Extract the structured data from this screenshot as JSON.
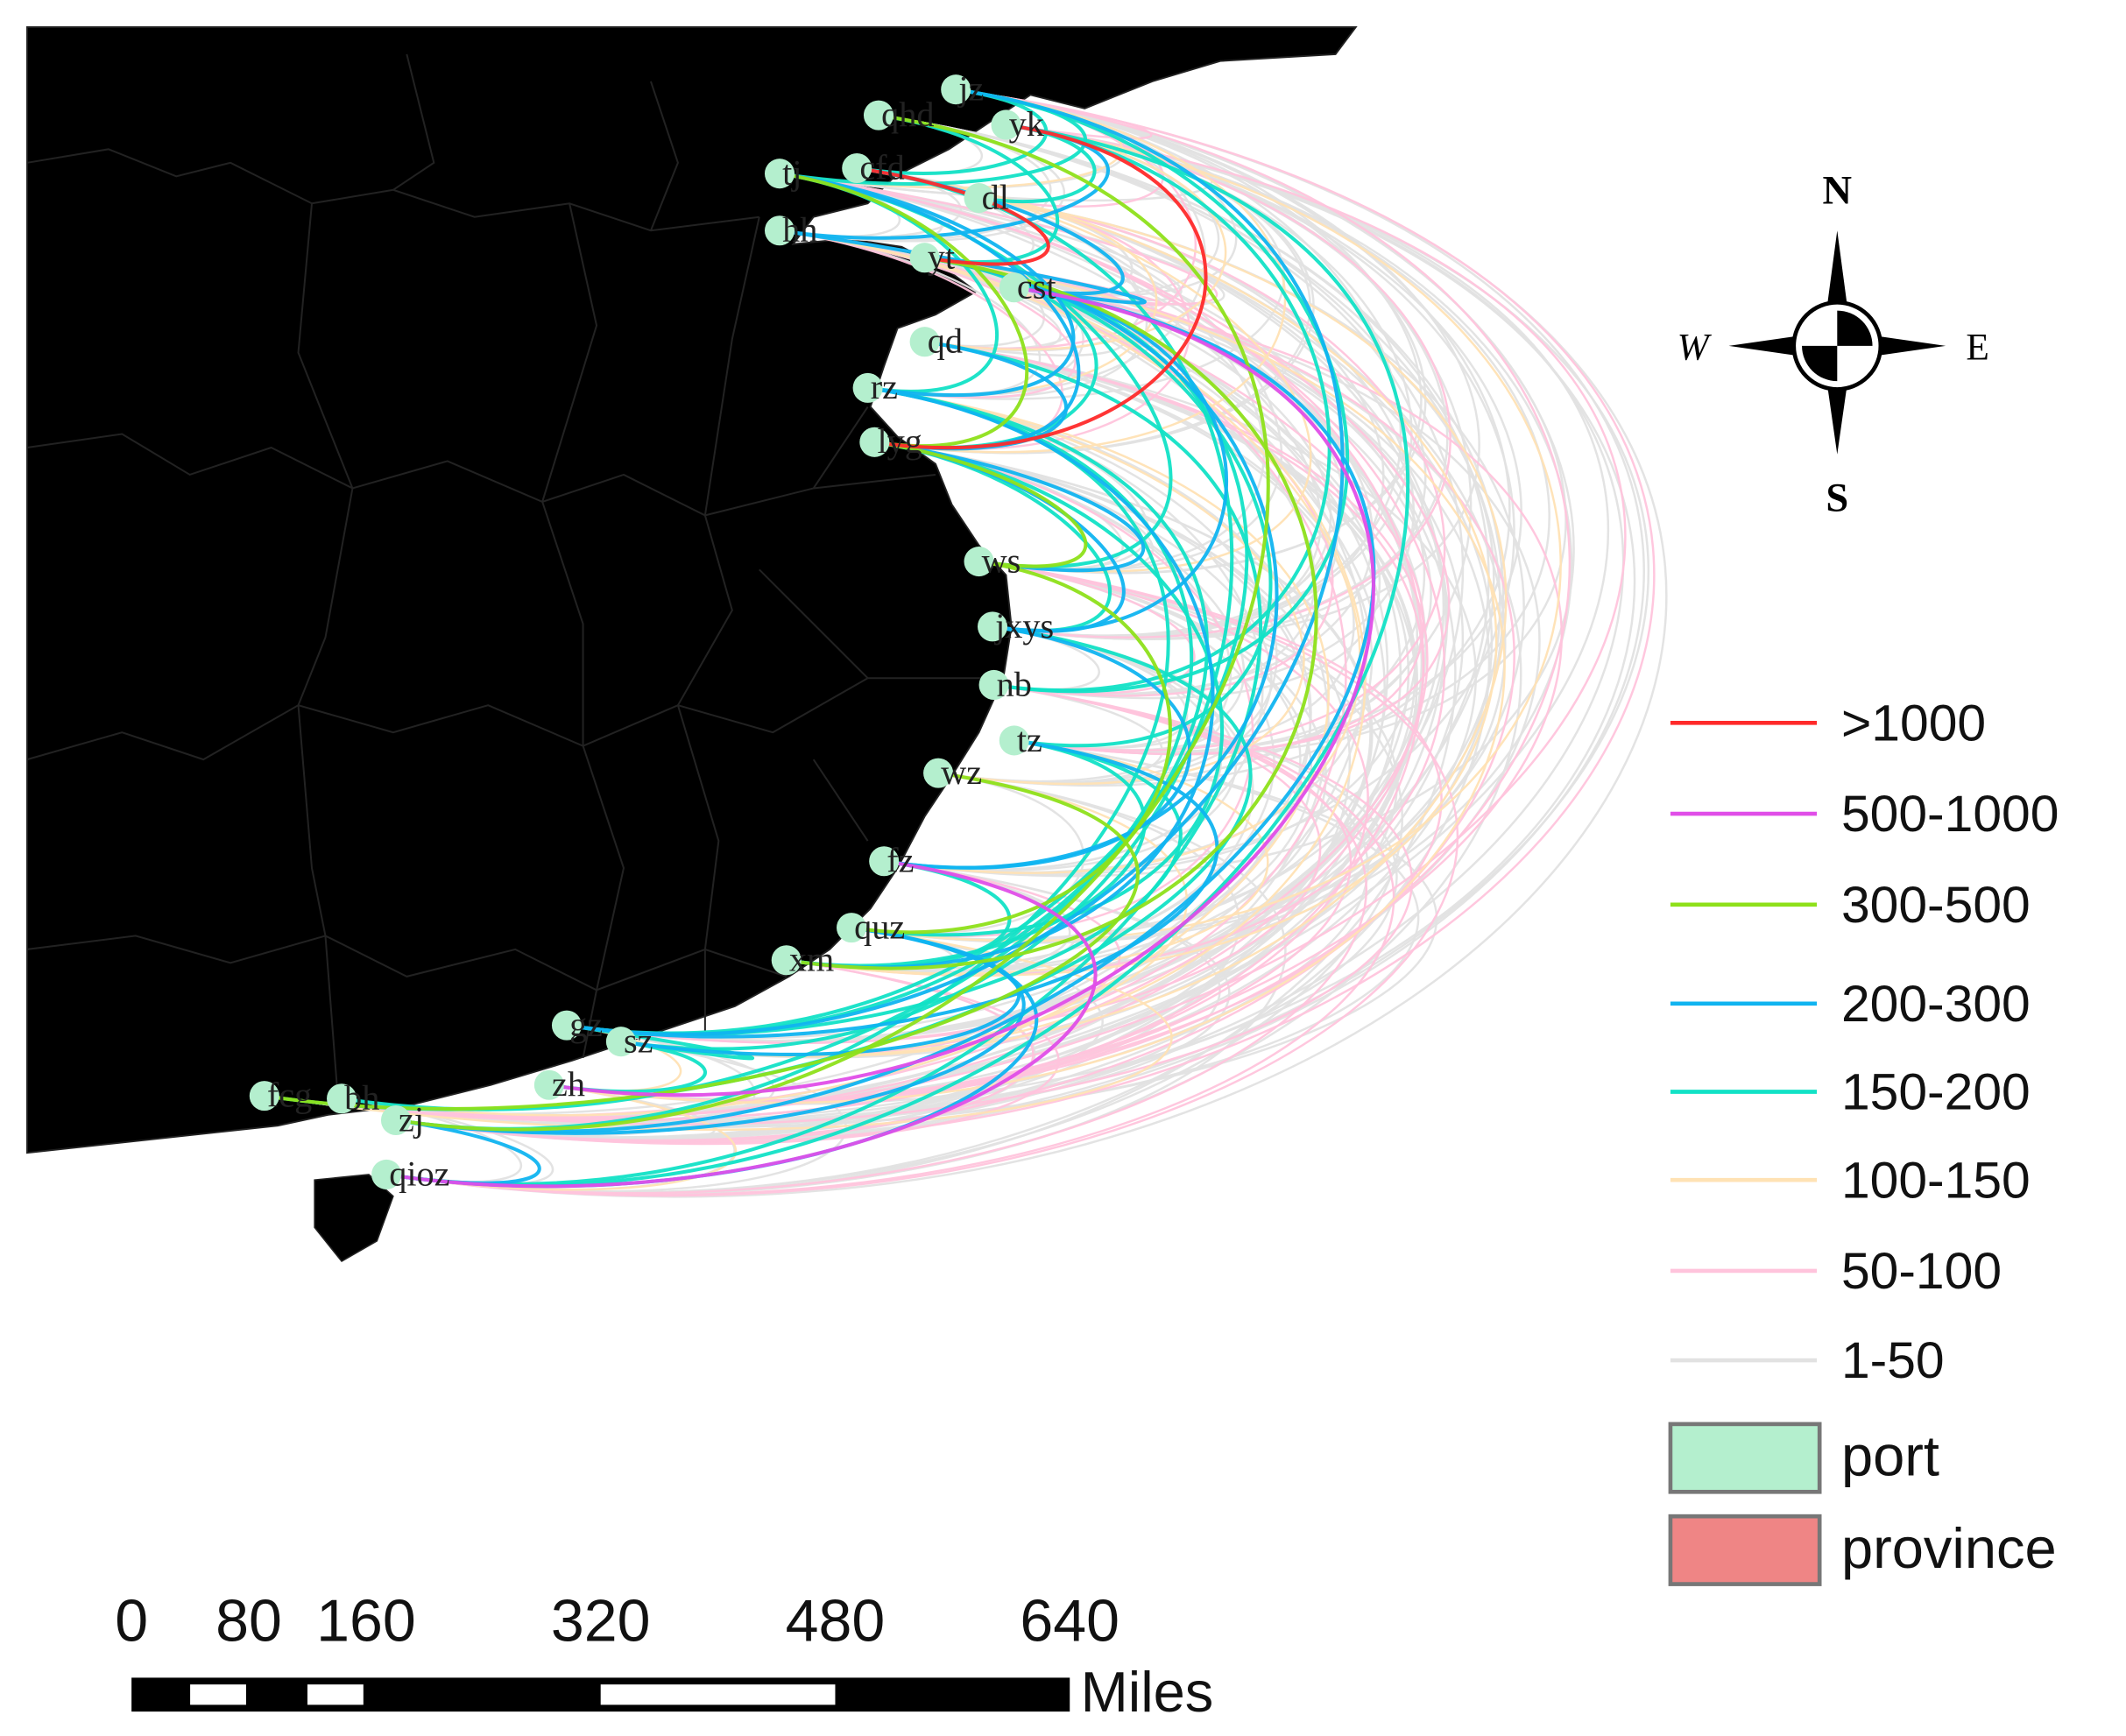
{
  "map": {
    "ports": [
      "jz",
      "qhd",
      "yk",
      "tj",
      "cfd",
      "dl",
      "hh",
      "yt",
      "cst",
      "qd",
      "rz",
      "lyg",
      "ws",
      "jxys",
      "nb",
      "tz",
      "wz",
      "fz",
      "quz",
      "xm",
      "gz",
      "sz",
      "zh",
      "fcg",
      "bh",
      "zj",
      "qioz"
    ],
    "legend": [
      {
        "label": ">1000",
        "color": "#ff2a2a"
      },
      {
        "label": "500-1000",
        "color": "#e04ee8"
      },
      {
        "label": "300-500",
        "color": "#8ee01a"
      },
      {
        "label": "200-300",
        "color": "#10b4f0"
      },
      {
        "label": "150-200",
        "color": "#12e2c6"
      },
      {
        "label": "100-150",
        "color": "#ffe2b4"
      },
      {
        "label": "50-100",
        "color": "#ffc4dc"
      },
      {
        "label": "1-50",
        "color": "#e2e2e2"
      }
    ],
    "port_legend": {
      "label": "port",
      "color": "#b4efce"
    },
    "province_legend": {
      "label": "province",
      "color": "#ef8585"
    },
    "compass": {
      "n": "N",
      "s": "S",
      "e": "E",
      "w": "W"
    },
    "scale_bar": {
      "ticks": [
        0,
        80,
        160,
        320,
        480,
        640
      ],
      "unit": "Miles"
    }
  }
}
